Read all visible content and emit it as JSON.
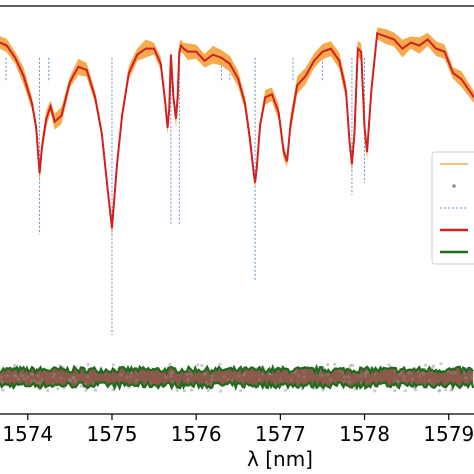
{
  "chart_data": {
    "type": "line",
    "xlabel": "λ [nm]",
    "xlim": [
      1573.67,
      1579.3
    ],
    "ylim": [
      -0.24,
      1.1
    ],
    "x_ticks": [
      1574,
      1575,
      1576,
      1577,
      1578,
      1579
    ],
    "x_tick_labels": [
      "1574",
      "1575",
      "1576",
      "1577",
      "1578",
      "1579"
    ],
    "grid": false,
    "legend_placement": "right",
    "legend_entries": [
      "",
      "",
      "",
      "",
      ""
    ],
    "colors": {
      "observed": "#f59b2f",
      "model": "#d21f1f",
      "residual": "#1f6b1f",
      "residual_fill": "#8b5a4b",
      "line_marker": "#5b8ec6",
      "points": "#9a8a8a"
    },
    "line_markers": [
      {
        "x": 1573.74,
        "y_end": 0.85
      },
      {
        "x": 1574.14,
        "y_end": 0.35
      },
      {
        "x": 1574.25,
        "y_end": 0.85
      },
      {
        "x": 1575.0,
        "y_end": 0.02
      },
      {
        "x": 1575.7,
        "y_end": 0.38
      },
      {
        "x": 1575.8,
        "y_end": 0.38
      },
      {
        "x": 1576.3,
        "y_end": 0.85
      },
      {
        "x": 1576.4,
        "y_end": 0.85
      },
      {
        "x": 1576.7,
        "y_end": 0.2
      },
      {
        "x": 1577.15,
        "y_end": 0.85
      },
      {
        "x": 1577.5,
        "y_end": 0.85
      },
      {
        "x": 1577.85,
        "y_end": 0.48
      },
      {
        "x": 1578.0,
        "y_end": 0.52
      }
    ],
    "series": [
      {
        "x": [
          1573.67,
          1573.75,
          1573.85,
          1573.95,
          1574.05,
          1574.1,
          1574.14,
          1574.17,
          1574.22,
          1574.27,
          1574.32,
          1574.4,
          1574.5,
          1574.6,
          1574.7,
          1574.8,
          1574.88,
          1574.94,
          1574.98,
          1575.0,
          1575.02,
          1575.06,
          1575.12,
          1575.2,
          1575.3,
          1575.4,
          1575.5,
          1575.58,
          1575.63,
          1575.66,
          1575.68,
          1575.7,
          1575.73,
          1575.76,
          1575.78,
          1575.8,
          1575.82,
          1575.85,
          1575.9,
          1576.0,
          1576.1,
          1576.2,
          1576.3,
          1576.4,
          1576.5,
          1576.58,
          1576.64,
          1576.68,
          1576.7,
          1576.72,
          1576.76,
          1576.82,
          1576.9,
          1576.98,
          1577.04,
          1577.08,
          1577.12,
          1577.2,
          1577.3,
          1577.4,
          1577.5,
          1577.6,
          1577.7,
          1577.78,
          1577.82,
          1577.85,
          1577.88,
          1577.92,
          1577.96,
          1578.0,
          1578.03,
          1578.08,
          1578.15,
          1578.25,
          1578.35,
          1578.45,
          1578.55,
          1578.65,
          1578.75,
          1578.85,
          1578.95,
          1579.05,
          1579.15,
          1579.3
        ],
        "y": [
          0.98,
          0.97,
          0.93,
          0.87,
          0.78,
          0.7,
          0.55,
          0.64,
          0.73,
          0.77,
          0.72,
          0.74,
          0.85,
          0.9,
          0.89,
          0.8,
          0.68,
          0.52,
          0.42,
          0.37,
          0.44,
          0.58,
          0.74,
          0.88,
          0.94,
          0.96,
          0.96,
          0.91,
          0.79,
          0.7,
          0.76,
          0.94,
          0.8,
          0.73,
          0.8,
          0.95,
          0.97,
          0.96,
          0.95,
          0.95,
          0.92,
          0.94,
          0.93,
          0.91,
          0.86,
          0.78,
          0.66,
          0.56,
          0.52,
          0.57,
          0.71,
          0.8,
          0.81,
          0.75,
          0.62,
          0.59,
          0.71,
          0.84,
          0.87,
          0.92,
          0.95,
          0.96,
          0.92,
          0.82,
          0.66,
          0.58,
          0.68,
          0.96,
          0.95,
          0.7,
          0.62,
          0.82,
          1.01,
          1.0,
          0.99,
          0.96,
          0.98,
          0.97,
          0.99,
          0.96,
          0.95,
          0.88,
          0.86,
          0.8
        ]
      }
    ],
    "residual": {
      "center": -0.12,
      "half_width": 0.025
    }
  }
}
